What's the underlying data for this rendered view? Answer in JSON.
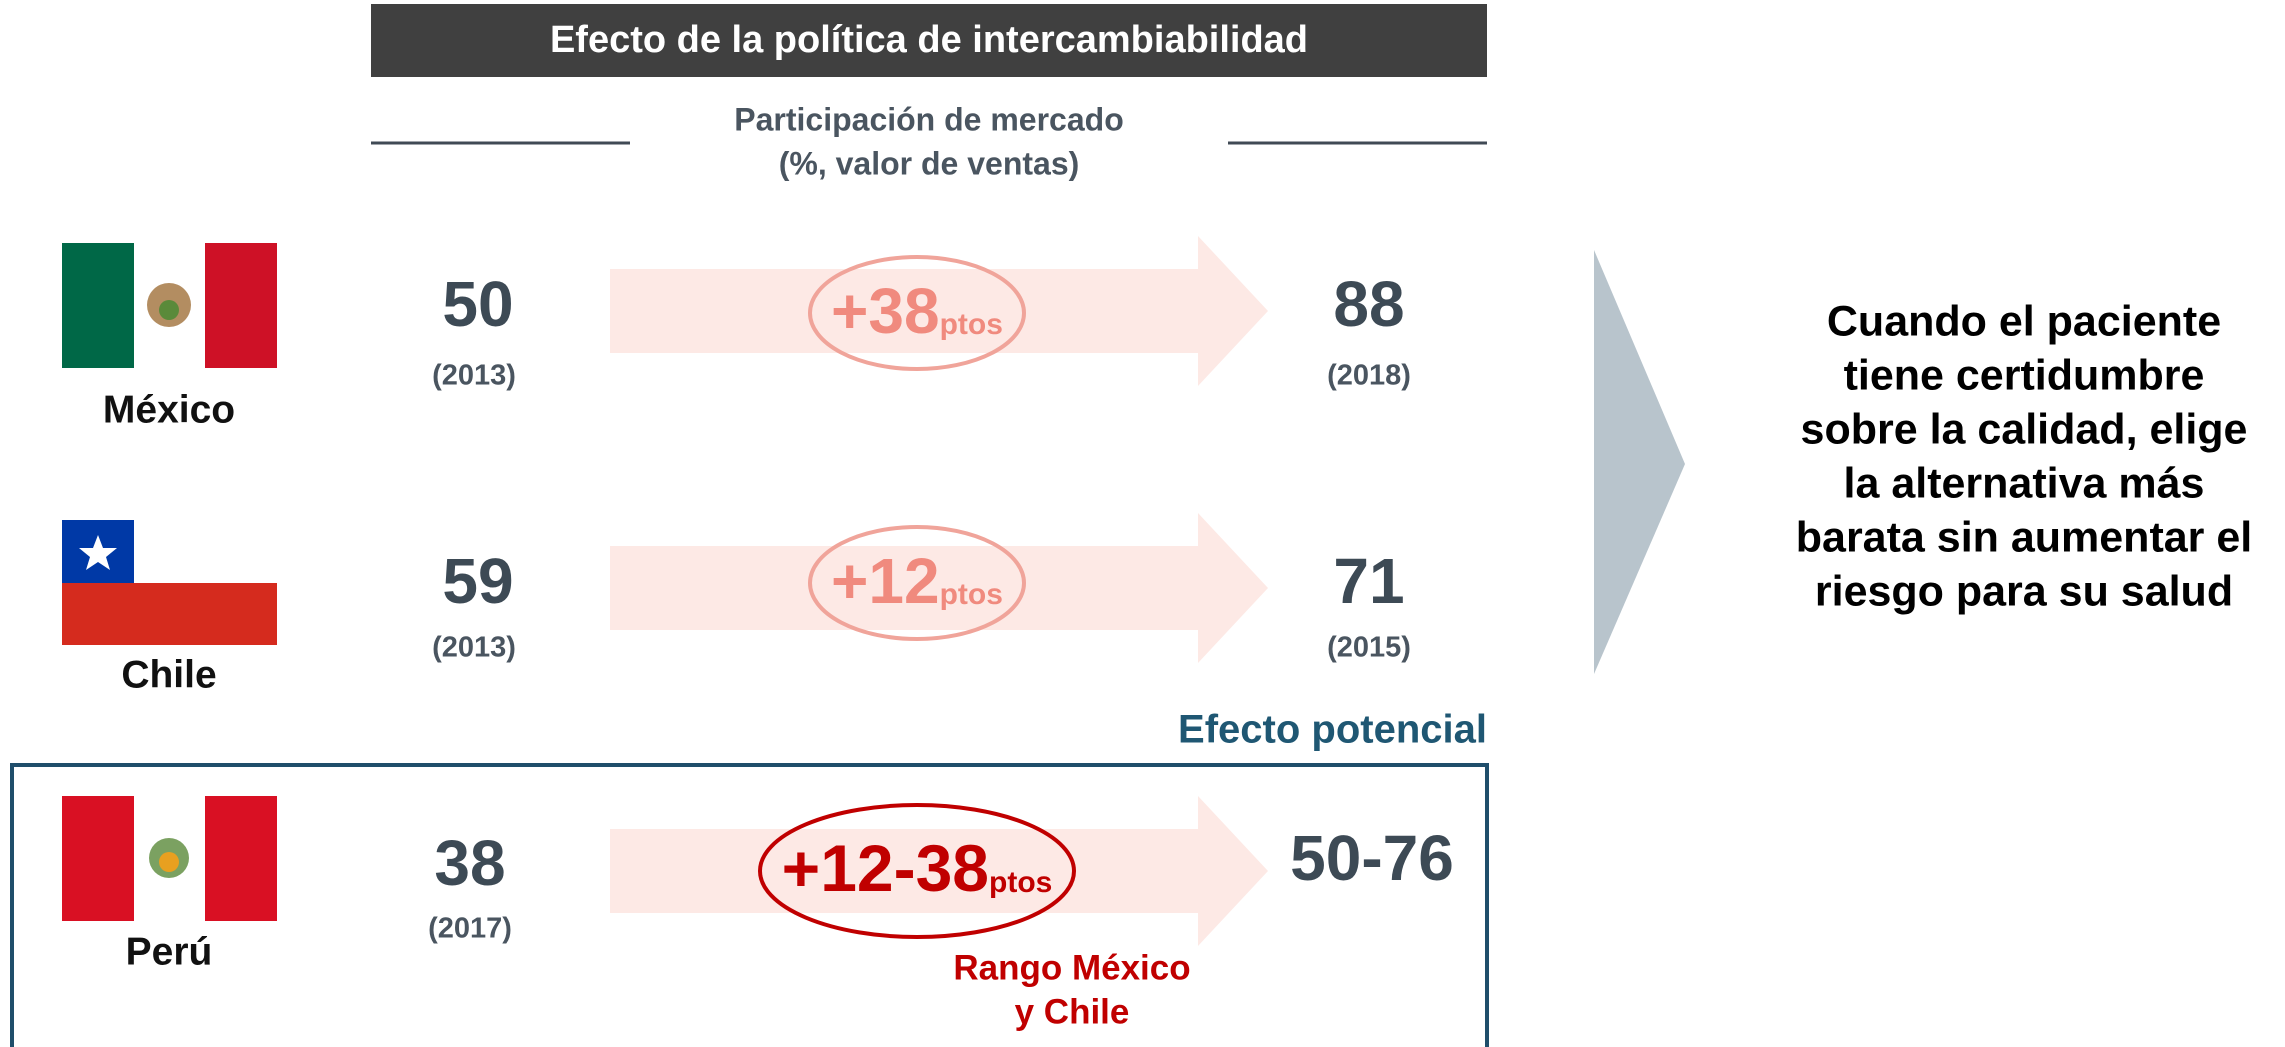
{
  "header": {
    "title": "Efecto de la política de intercambiabilidad",
    "subtitle": [
      "Participación de mercado",
      "(%, valor de ventas)"
    ]
  },
  "rows": [
    {
      "country": "México",
      "start": "50",
      "start_year": "(2013)",
      "change": "+38",
      "unit": "ptos",
      "end": "88",
      "end_year": "(2018)"
    },
    {
      "country": "Chile",
      "start": "59",
      "start_year": "(2013)",
      "change": "+12",
      "unit": "ptos",
      "end": "71",
      "end_year": "(2015)"
    }
  ],
  "potential": {
    "label": "Efecto potencial",
    "country": "Perú",
    "start": "38",
    "start_year": "(2017)",
    "change": "+12-38",
    "unit": "ptos",
    "end": "50-76",
    "note": [
      "Rango México",
      "y Chile"
    ]
  },
  "conclusion": [
    "Cuando el paciente",
    "tiene certidumbre",
    "sobre la calidad, elige",
    "la alternativa más",
    "barata sin aumentar el",
    "riesgo para su salud"
  ]
}
